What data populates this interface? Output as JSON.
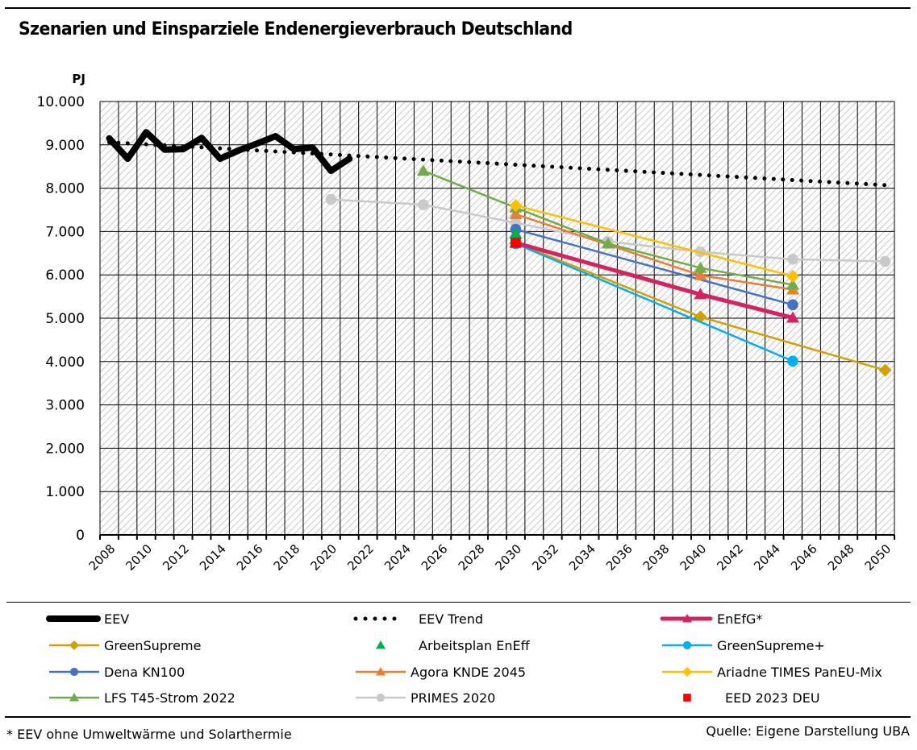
{
  "chart_data": {
    "type": "line",
    "title": "Szenarien und Einsparziele Endenergieverbrauch Deutschland",
    "ylabel": "PJ",
    "xlabel": "",
    "ylim": [
      0,
      10000
    ],
    "yticks": [
      0,
      1000,
      2000,
      3000,
      4000,
      5000,
      6000,
      7000,
      8000,
      9000,
      10000
    ],
    "ytick_labels": [
      "0",
      "1.000",
      "2.000",
      "3.000",
      "4.000",
      "5.000",
      "6.000",
      "7.000",
      "8.000",
      "9.000",
      "10.000"
    ],
    "x_categories_first": 2008,
    "x_categories_last": 2050,
    "xtick_labels": [
      "2008",
      "2010",
      "2012",
      "2014",
      "2016",
      "2018",
      "2020",
      "2022",
      "2024",
      "2026",
      "2028",
      "2030",
      "2032",
      "2034",
      "2036",
      "2038",
      "2040",
      "2042",
      "2044",
      "2046",
      "2048",
      "2050"
    ],
    "grid": "major horizontal every 1000, vertical every year; hatched plot background",
    "legend_position": "bottom",
    "series": [
      {
        "name": "EEV",
        "color": "#000000",
        "style": "thick-line",
        "marker": "none",
        "x": [
          2008,
          2009,
          2010,
          2011,
          2012,
          2013,
          2014,
          2015,
          2016,
          2017,
          2018,
          2019,
          2020,
          2021
        ],
        "values": [
          9150,
          8680,
          9290,
          8890,
          8900,
          9160,
          8680,
          8870,
          9030,
          9200,
          8900,
          8940,
          8400,
          8680
        ]
      },
      {
        "name": "EEV Trend",
        "color": "#000000",
        "style": "dotted",
        "marker": "none",
        "x": [
          2008,
          2050
        ],
        "values": [
          9060,
          8070
        ]
      },
      {
        "name": "EnEfG*",
        "color": "#D6225F",
        "style": "thick-line",
        "marker": "triangle",
        "x": [
          2030,
          2040,
          2045
        ],
        "values": [
          6740,
          5550,
          5010
        ]
      },
      {
        "name": "GreenSupreme",
        "color": "#D4A000",
        "style": "line",
        "marker": "diamond",
        "x": [
          2030,
          2040,
          2050
        ],
        "values": [
          6740,
          5030,
          3800
        ]
      },
      {
        "name": "Arbeitsplan EnEff",
        "color": "#00B050",
        "style": "none",
        "marker": "triangle",
        "x": [
          2030
        ],
        "values": [
          6950
        ]
      },
      {
        "name": "GreenSupreme+",
        "color": "#00B0F0",
        "style": "line",
        "marker": "circle",
        "x": [
          2030,
          2045
        ],
        "values": [
          6720,
          4010
        ]
      },
      {
        "name": "Dena KN100",
        "color": "#4472C4",
        "style": "line",
        "marker": "circle",
        "x": [
          2030,
          2045
        ],
        "values": [
          7050,
          5310
        ]
      },
      {
        "name": "Agora KNDE 2045",
        "color": "#ED7D31",
        "style": "line",
        "marker": "triangle",
        "x": [
          2030,
          2040,
          2045
        ],
        "values": [
          7400,
          5990,
          5660
        ]
      },
      {
        "name": "Ariadne TIMES PanEU-Mix",
        "color": "#FFC000",
        "style": "line",
        "marker": "diamond",
        "x": [
          2030,
          2045
        ],
        "values": [
          7600,
          5970
        ]
      },
      {
        "name": "LFS T45-Strom 2022",
        "color": "#70AD47",
        "style": "line",
        "marker": "triangle",
        "x": [
          2025,
          2030,
          2035,
          2040,
          2045
        ],
        "values": [
          8400,
          7550,
          6720,
          6160,
          5770
        ]
      },
      {
        "name": "PRIMES 2020",
        "color": "#C9C9C9",
        "style": "line",
        "marker": "circle",
        "x": [
          2020,
          2025,
          2030,
          2035,
          2040,
          2045,
          2050
        ],
        "values": [
          7740,
          7620,
          7200,
          6770,
          6530,
          6360,
          6310
        ]
      },
      {
        "name": "EED 2023 DEU",
        "color": "#FF0000",
        "style": "none",
        "marker": "square",
        "x": [
          2030
        ],
        "values": [
          6740
        ]
      }
    ],
    "annotations": {
      "footnote": "* EEV ohne Umweltwärme und Solarthermie",
      "source": "Quelle: Eigene Darstellung UBA"
    }
  }
}
